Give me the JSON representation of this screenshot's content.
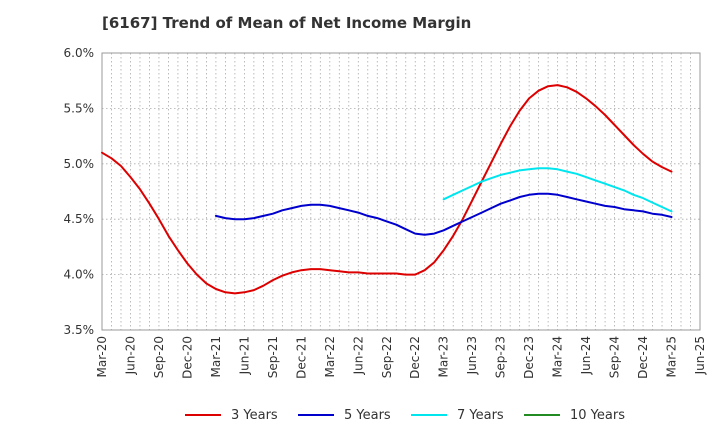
{
  "chart_data": {
    "type": "line",
    "title": "[6167]  Trend of Mean of Net Income Margin",
    "xlabel": "",
    "ylabel": "",
    "ylim": [
      3.5,
      6.0
    ],
    "yticks": [
      "3.5%",
      "4.0%",
      "4.5%",
      "5.0%",
      "5.5%",
      "6.0%"
    ],
    "xticks": [
      "Mar-20",
      "Jun-20",
      "Sep-20",
      "Dec-20",
      "Mar-21",
      "Jun-21",
      "Sep-21",
      "Dec-21",
      "Mar-22",
      "Jun-22",
      "Sep-22",
      "Dec-22",
      "Mar-23",
      "Jun-23",
      "Sep-23",
      "Dec-23",
      "Mar-24",
      "Jun-24",
      "Sep-24",
      "Dec-24",
      "Mar-25",
      "Jun-25"
    ],
    "grid": true,
    "legend_position": "bottom",
    "series": [
      {
        "name": "3 Years",
        "color": "#dd0000",
        "values": [
          [
            "Mar-20",
            5.1
          ],
          [
            "Apr-20",
            5.05
          ],
          [
            "May-20",
            4.98
          ],
          [
            "Jun-20",
            4.88
          ],
          [
            "Jul-20",
            4.77
          ],
          [
            "Aug-20",
            4.64
          ],
          [
            "Sep-20",
            4.5
          ],
          [
            "Oct-20",
            4.35
          ],
          [
            "Nov-20",
            4.22
          ],
          [
            "Dec-20",
            4.1
          ],
          [
            "Jan-21",
            4.0
          ],
          [
            "Feb-21",
            3.92
          ],
          [
            "Mar-21",
            3.87
          ],
          [
            "Apr-21",
            3.84
          ],
          [
            "May-21",
            3.83
          ],
          [
            "Jun-21",
            3.84
          ],
          [
            "Jul-21",
            3.86
          ],
          [
            "Aug-21",
            3.9
          ],
          [
            "Sep-21",
            3.95
          ],
          [
            "Oct-21",
            3.99
          ],
          [
            "Nov-21",
            4.02
          ],
          [
            "Dec-21",
            4.04
          ],
          [
            "Jan-22",
            4.05
          ],
          [
            "Feb-22",
            4.05
          ],
          [
            "Mar-22",
            4.04
          ],
          [
            "Apr-22",
            4.03
          ],
          [
            "May-22",
            4.02
          ],
          [
            "Jun-22",
            4.02
          ],
          [
            "Jul-22",
            4.01
          ],
          [
            "Aug-22",
            4.01
          ],
          [
            "Sep-22",
            4.01
          ],
          [
            "Oct-22",
            4.01
          ],
          [
            "Nov-22",
            4.0
          ],
          [
            "Dec-22",
            4.0
          ],
          [
            "Jan-23",
            4.04
          ],
          [
            "Feb-23",
            4.11
          ],
          [
            "Mar-23",
            4.22
          ],
          [
            "Apr-23",
            4.35
          ],
          [
            "May-23",
            4.5
          ],
          [
            "Jun-23",
            4.67
          ],
          [
            "Jul-23",
            4.84
          ],
          [
            "Aug-23",
            5.01
          ],
          [
            "Sep-23",
            5.18
          ],
          [
            "Oct-23",
            5.34
          ],
          [
            "Nov-23",
            5.48
          ],
          [
            "Dec-23",
            5.59
          ],
          [
            "Jan-24",
            5.66
          ],
          [
            "Feb-24",
            5.7
          ],
          [
            "Mar-24",
            5.71
          ],
          [
            "Apr-24",
            5.69
          ],
          [
            "May-24",
            5.65
          ],
          [
            "Jun-24",
            5.59
          ],
          [
            "Jul-24",
            5.52
          ],
          [
            "Aug-24",
            5.44
          ],
          [
            "Sep-24",
            5.35
          ],
          [
            "Oct-24",
            5.26
          ],
          [
            "Nov-24",
            5.17
          ],
          [
            "Dec-24",
            5.09
          ],
          [
            "Jan-25",
            5.02
          ],
          [
            "Feb-25",
            4.97
          ],
          [
            "Mar-25",
            4.93
          ]
        ]
      },
      {
        "name": "5 Years",
        "color": "#0000cc",
        "values": [
          [
            "Mar-21",
            4.53
          ],
          [
            "Apr-21",
            4.51
          ],
          [
            "May-21",
            4.5
          ],
          [
            "Jun-21",
            4.5
          ],
          [
            "Jul-21",
            4.51
          ],
          [
            "Aug-21",
            4.53
          ],
          [
            "Sep-21",
            4.55
          ],
          [
            "Oct-21",
            4.58
          ],
          [
            "Nov-21",
            4.6
          ],
          [
            "Dec-21",
            4.62
          ],
          [
            "Jan-22",
            4.63
          ],
          [
            "Feb-22",
            4.63
          ],
          [
            "Mar-22",
            4.62
          ],
          [
            "Apr-22",
            4.6
          ],
          [
            "May-22",
            4.58
          ],
          [
            "Jun-22",
            4.56
          ],
          [
            "Jul-22",
            4.53
          ],
          [
            "Aug-22",
            4.51
          ],
          [
            "Sep-22",
            4.48
          ],
          [
            "Oct-22",
            4.45
          ],
          [
            "Nov-22",
            4.41
          ],
          [
            "Dec-22",
            4.37
          ],
          [
            "Jan-23",
            4.36
          ],
          [
            "Feb-23",
            4.37
          ],
          [
            "Mar-23",
            4.4
          ],
          [
            "Apr-23",
            4.44
          ],
          [
            "May-23",
            4.48
          ],
          [
            "Jun-23",
            4.52
          ],
          [
            "Jul-23",
            4.56
          ],
          [
            "Aug-23",
            4.6
          ],
          [
            "Sep-23",
            4.64
          ],
          [
            "Oct-23",
            4.67
          ],
          [
            "Nov-23",
            4.7
          ],
          [
            "Dec-23",
            4.72
          ],
          [
            "Jan-24",
            4.73
          ],
          [
            "Feb-24",
            4.73
          ],
          [
            "Mar-24",
            4.72
          ],
          [
            "Apr-24",
            4.7
          ],
          [
            "May-24",
            4.68
          ],
          [
            "Jun-24",
            4.66
          ],
          [
            "Jul-24",
            4.64
          ],
          [
            "Aug-24",
            4.62
          ],
          [
            "Sep-24",
            4.61
          ],
          [
            "Oct-24",
            4.59
          ],
          [
            "Nov-24",
            4.58
          ],
          [
            "Dec-24",
            4.57
          ],
          [
            "Jan-25",
            4.55
          ],
          [
            "Feb-25",
            4.54
          ],
          [
            "Mar-25",
            4.52
          ]
        ]
      },
      {
        "name": "7 Years",
        "color": "#00e5ee",
        "values": [
          [
            "Mar-23",
            4.68
          ],
          [
            "Apr-23",
            4.72
          ],
          [
            "May-23",
            4.76
          ],
          [
            "Jun-23",
            4.8
          ],
          [
            "Jul-23",
            4.84
          ],
          [
            "Aug-23",
            4.87
          ],
          [
            "Sep-23",
            4.9
          ],
          [
            "Oct-23",
            4.92
          ],
          [
            "Nov-23",
            4.94
          ],
          [
            "Dec-23",
            4.95
          ],
          [
            "Jan-24",
            4.96
          ],
          [
            "Feb-24",
            4.96
          ],
          [
            "Mar-24",
            4.95
          ],
          [
            "Apr-24",
            4.93
          ],
          [
            "May-24",
            4.91
          ],
          [
            "Jun-24",
            4.88
          ],
          [
            "Jul-24",
            4.85
          ],
          [
            "Aug-24",
            4.82
          ],
          [
            "Sep-24",
            4.79
          ],
          [
            "Oct-24",
            4.76
          ],
          [
            "Nov-24",
            4.72
          ],
          [
            "Dec-24",
            4.69
          ],
          [
            "Jan-25",
            4.65
          ],
          [
            "Feb-25",
            4.61
          ],
          [
            "Mar-25",
            4.57
          ]
        ]
      },
      {
        "name": "10 Years",
        "color": "#228b22",
        "values": []
      }
    ]
  }
}
